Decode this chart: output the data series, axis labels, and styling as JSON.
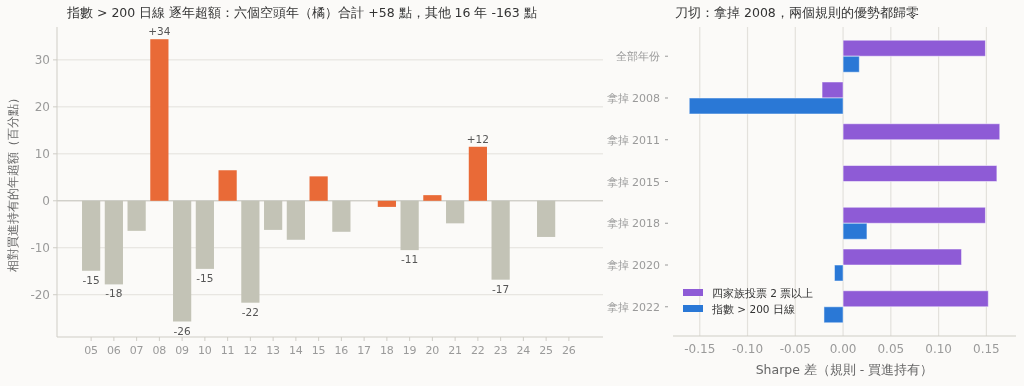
{
  "chart_data": [
    {
      "type": "bar",
      "title": "指數 > 200 日線 逐年超額：六個空頭年（橘）合計 +58 點，其他 16 年 -163 點",
      "ylabel": "相對買進持有的年超額（百分點）",
      "categories": [
        "05",
        "06",
        "07",
        "08",
        "09",
        "10",
        "11",
        "12",
        "13",
        "14",
        "15",
        "16",
        "17",
        "18",
        "19",
        "20",
        "21",
        "22",
        "23",
        "24",
        "25",
        "26"
      ],
      "values": [
        -14.9,
        -17.8,
        -6.4,
        34.4,
        -25.7,
        -14.5,
        6.5,
        -21.7,
        -6.2,
        -8.3,
        5.2,
        -6.6,
        null,
        -1.3,
        -10.5,
        1.2,
        -4.8,
        11.5,
        -16.8,
        null,
        -7.7,
        null
      ],
      "colors": [
        "#c3c3b6",
        "#c3c3b6",
        "#c3c3b6",
        "#e96a37",
        "#c3c3b6",
        "#c3c3b6",
        "#e96a37",
        "#c3c3b6",
        "#c3c3b6",
        "#c3c3b6",
        "#e96a37",
        "#c3c3b6",
        "#c3c3b6",
        "#e96a37",
        "#c3c3b6",
        "#e96a37",
        "#c3c3b6",
        "#e96a37",
        "#c3c3b6",
        "#c3c3b6",
        "#c3c3b6",
        "#c3c3b6"
      ],
      "value_labels": [
        "-15",
        "-18",
        null,
        "+34",
        "-26",
        "-15",
        null,
        "-22",
        null,
        null,
        null,
        null,
        null,
        null,
        "-11",
        null,
        null,
        "+12",
        "-17",
        null,
        null,
        null
      ],
      "ylim": [
        -29,
        37
      ],
      "yticks": [
        -20,
        -10,
        0,
        10,
        20,
        30
      ],
      "grid": "y"
    },
    {
      "type": "bar",
      "orientation": "horizontal",
      "title": "刀切：拿掉 2008，兩個規則的優勢都歸零",
      "xlabel": "Sharpe 差（規則 - 買進持有）",
      "categories": [
        "全部年份",
        "拿掉 2008",
        "拿掉 2011",
        "拿掉 2015",
        "拿掉 2018",
        "拿掉 2020",
        "拿掉 2022"
      ],
      "series": [
        {
          "name": "四家族投票 2 票以上",
          "color": "#8e5bd6",
          "values": [
            0.149,
            -0.022,
            0.164,
            0.161,
            0.149,
            0.124,
            0.152
          ]
        },
        {
          "name": "指數 > 200 日線",
          "color": "#2a78d6",
          "values": [
            0.017,
            -0.161,
            null,
            null,
            0.025,
            -0.009,
            -0.02
          ]
        }
      ],
      "xlim": [
        -0.178,
        0.181
      ],
      "xticks": [
        {
          "value": -0.15,
          "label": "-0.15"
        },
        {
          "value": -0.1,
          "label": "-0.10"
        },
        {
          "value": -0.05,
          "label": "-0.05"
        },
        {
          "value": 0,
          "label": "0.00"
        },
        {
          "value": 0.05,
          "label": "0.05"
        },
        {
          "value": 0.1,
          "label": "0.10"
        },
        {
          "value": 0.15,
          "label": "0.15"
        }
      ],
      "grid": "x",
      "legend": "bottom left"
    }
  ]
}
